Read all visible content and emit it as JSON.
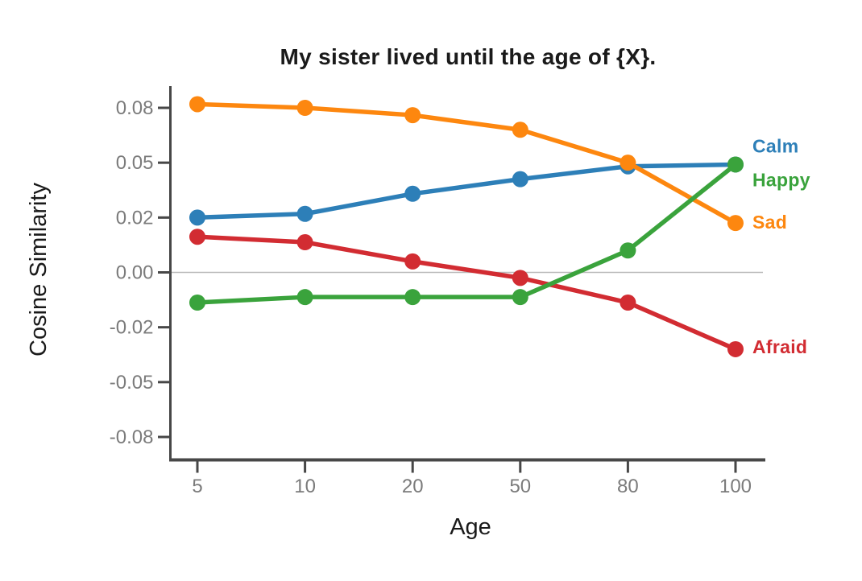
{
  "chart_data": {
    "type": "line",
    "title": "My sister lived until the age of {X}.",
    "xlabel": "Age",
    "ylabel": "Cosine Similarity",
    "x_values": [
      5,
      10,
      20,
      50,
      80,
      100
    ],
    "x_tick_labels": [
      "5",
      "10",
      "20",
      "50",
      "80",
      "100"
    ],
    "y_ticks": [
      {
        "label": "0.08",
        "value": 0.08
      },
      {
        "label": "0.05",
        "value": 0.05
      },
      {
        "label": "0.02",
        "value": 0.02
      },
      {
        "label": "0.00",
        "value": 0.0
      },
      {
        "label": "-0.02",
        "value": -0.02
      },
      {
        "label": "-0.05",
        "value": -0.05
      },
      {
        "label": "-0.08",
        "value": -0.08
      }
    ],
    "grid": "zero-line-only",
    "legend_position": "right-of-plot-at-line-ends",
    "series": [
      {
        "name": "Calm",
        "color": "#2d7fb8",
        "values": [
          0.02,
          0.022,
          0.033,
          0.041,
          0.048,
          0.049
        ]
      },
      {
        "name": "Happy",
        "color": "#3aa33c",
        "values": [
          -0.011,
          -0.009,
          -0.009,
          -0.009,
          0.008,
          0.049
        ]
      },
      {
        "name": "Sad",
        "color": "#fd870f",
        "values": [
          0.082,
          0.08,
          0.076,
          0.068,
          0.05,
          0.018
        ]
      },
      {
        "name": "Afraid",
        "color": "#d22c32",
        "values": [
          0.013,
          0.011,
          0.004,
          -0.002,
          -0.011,
          -0.032
        ]
      }
    ],
    "colors": {
      "axis": "#474747",
      "tick_label": "#7b7b7b",
      "zero_line": "#b9b9b9",
      "text": "#1a1a1a",
      "background": "#ffffff"
    }
  }
}
